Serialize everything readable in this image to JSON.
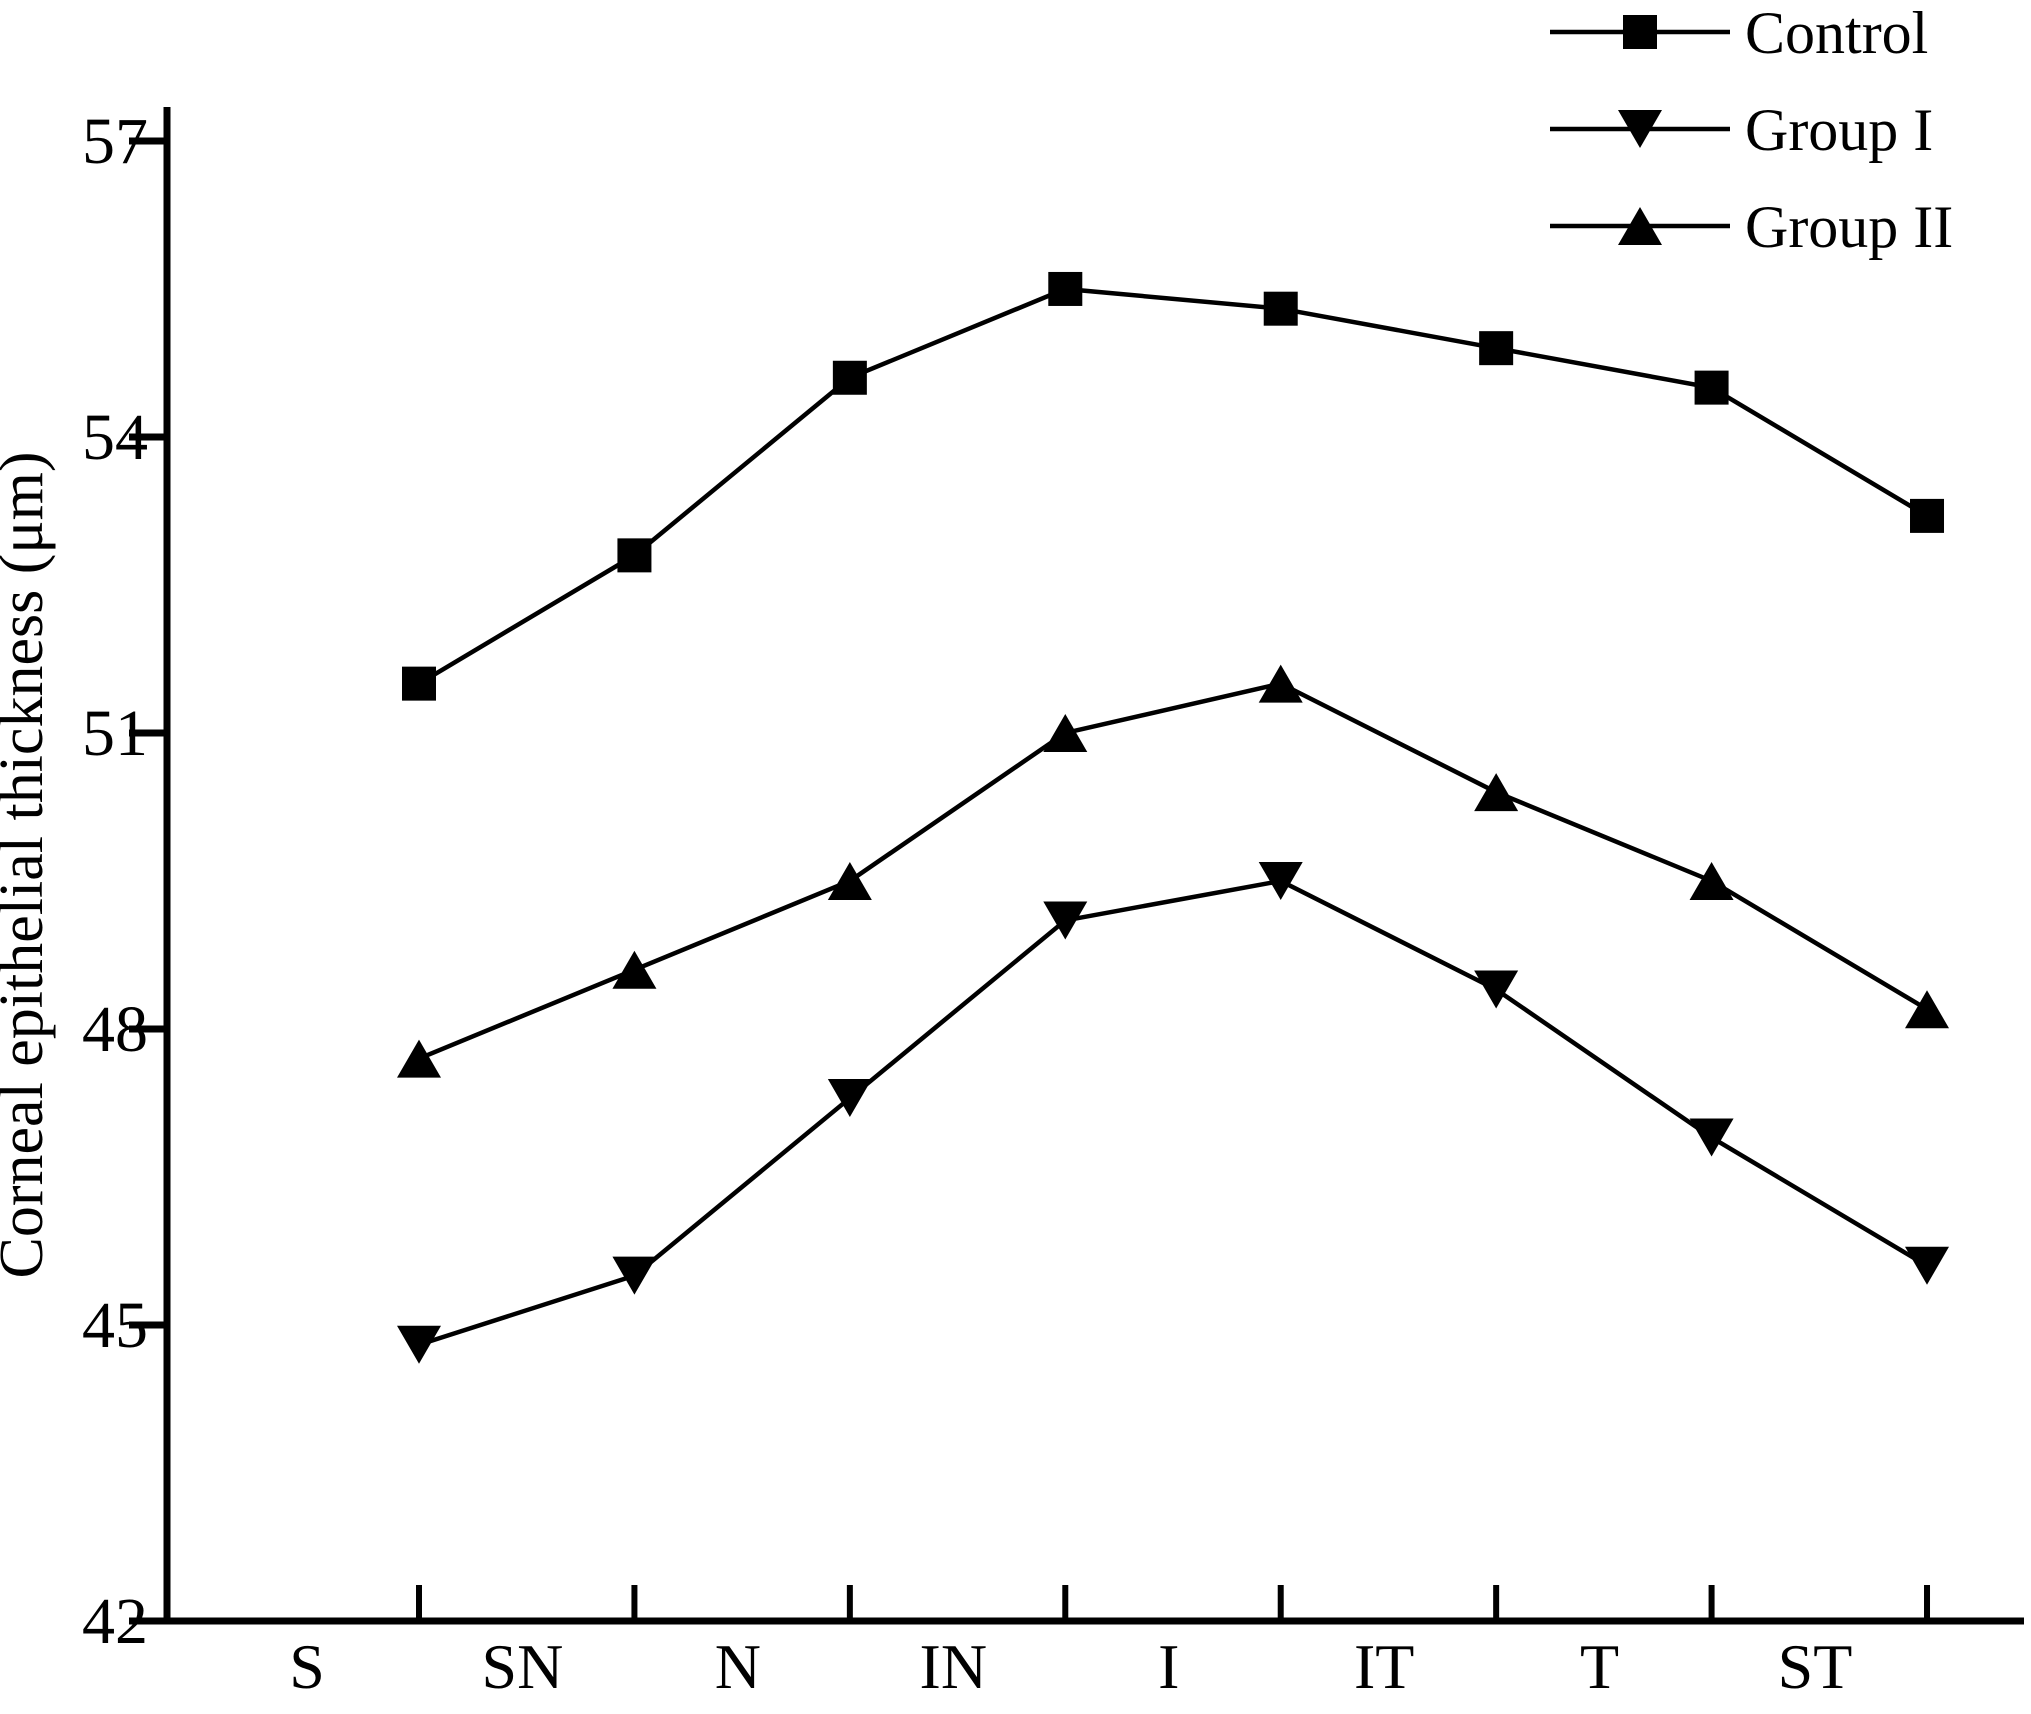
{
  "figure": {
    "background": "#ffffff",
    "foreground": "#000000"
  },
  "chart_data": {
    "type": "line",
    "title": "",
    "xlabel": "",
    "ylabel": "Corneal epithelial thickness (μm)",
    "categories": [
      "S",
      "SN",
      "N",
      "IN",
      "I",
      "IT",
      "T",
      "ST"
    ],
    "series": [
      {
        "name": "Control",
        "marker": "square",
        "values": [
          51.5,
          52.8,
          54.6,
          55.5,
          55.3,
          54.9,
          54.5,
          53.2
        ]
      },
      {
        "name": "Group I",
        "marker": "triangle-down",
        "values": [
          44.8,
          45.5,
          47.3,
          49.1,
          49.5,
          48.4,
          46.9,
          45.6
        ]
      },
      {
        "name": "Group II",
        "marker": "triangle-up",
        "values": [
          47.7,
          48.6,
          49.5,
          51.0,
          51.5,
          50.4,
          49.5,
          48.2
        ]
      }
    ],
    "yticks": [
      42,
      45,
      48,
      51,
      54,
      57
    ],
    "ylim": [
      42,
      57.35
    ],
    "grid": false,
    "legend_position": "top-right",
    "line_color": "#000000",
    "marker_color": "#000000"
  }
}
